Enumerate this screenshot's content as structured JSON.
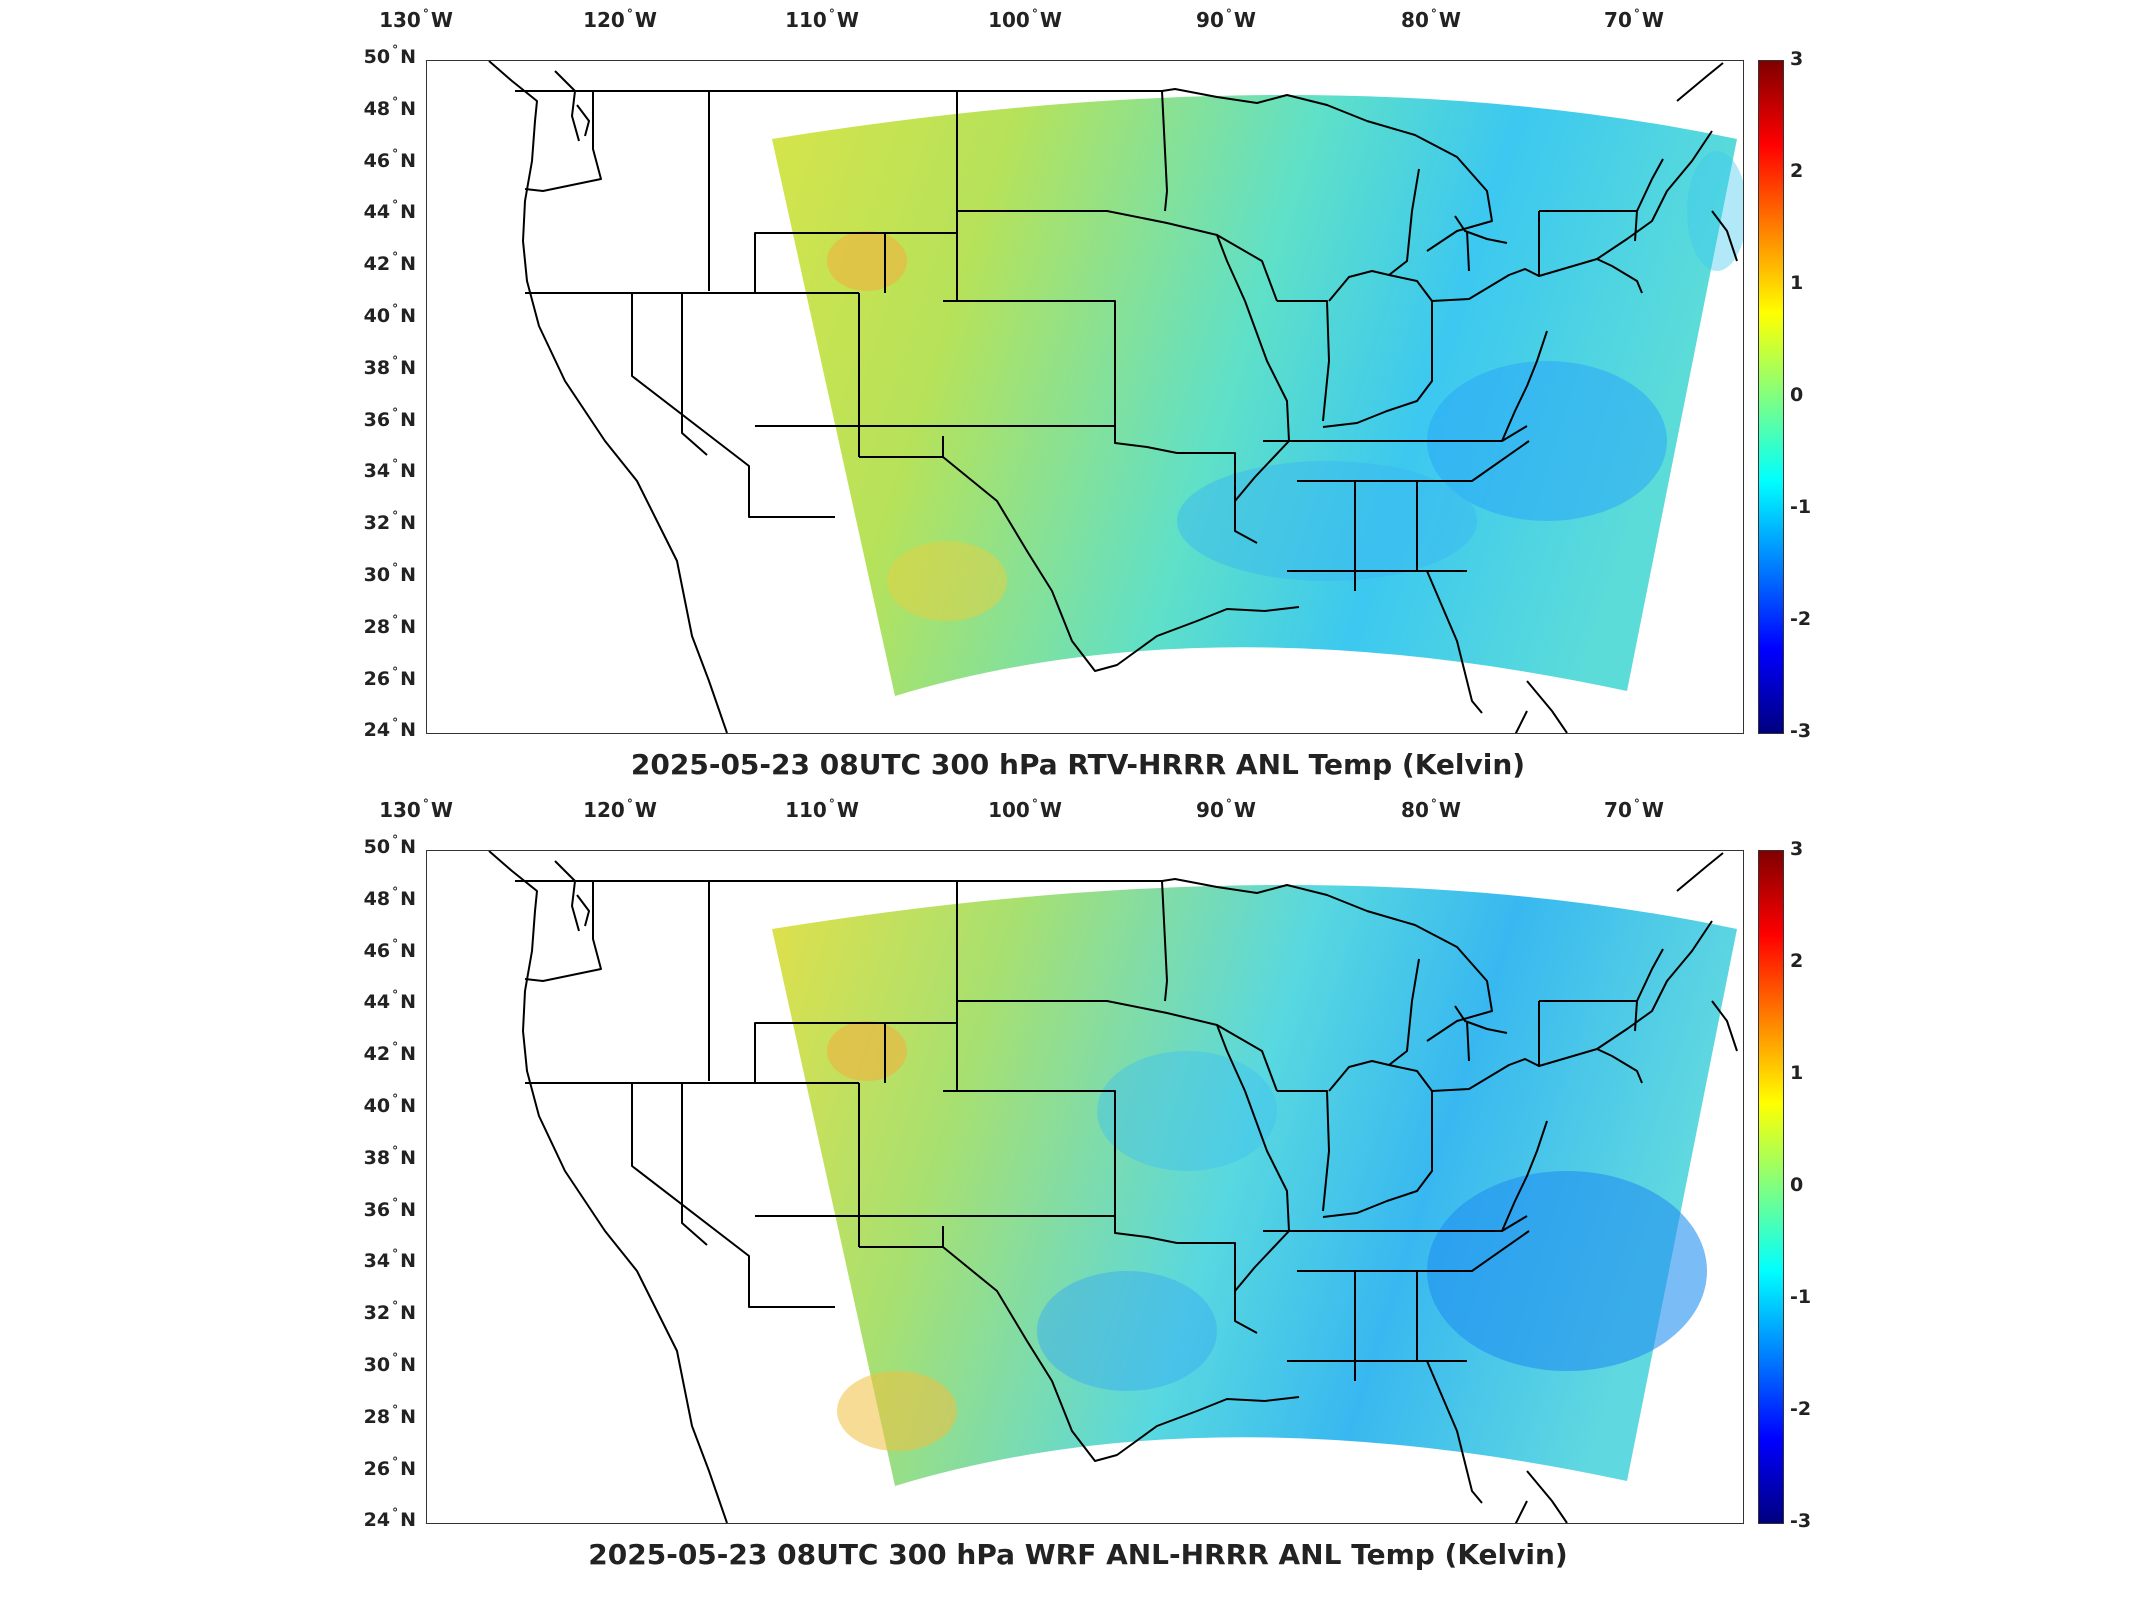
{
  "colorbar": {
    "ticks": [
      "3",
      "2",
      "1",
      "0",
      "-1",
      "-2",
      "-3"
    ],
    "colors": [
      "#800000",
      "#ff0000",
      "#ff8000",
      "#ffff00",
      "#80ff80",
      "#00ffff",
      "#0080ff",
      "#0000ff",
      "#000080"
    ]
  },
  "axes": {
    "lon_labels": [
      {
        "deg": "130",
        "hem": "W"
      },
      {
        "deg": "120",
        "hem": "W"
      },
      {
        "deg": "110",
        "hem": "W"
      },
      {
        "deg": "100",
        "hem": "W"
      },
      {
        "deg": "90",
        "hem": "W"
      },
      {
        "deg": "80",
        "hem": "W"
      },
      {
        "deg": "70",
        "hem": "W"
      }
    ],
    "lat_labels": [
      {
        "deg": "50",
        "hem": "N"
      },
      {
        "deg": "48",
        "hem": "N"
      },
      {
        "deg": "46",
        "hem": "N"
      },
      {
        "deg": "44",
        "hem": "N"
      },
      {
        "deg": "42",
        "hem": "N"
      },
      {
        "deg": "40",
        "hem": "N"
      },
      {
        "deg": "38",
        "hem": "N"
      },
      {
        "deg": "36",
        "hem": "N"
      },
      {
        "deg": "34",
        "hem": "N"
      },
      {
        "deg": "32",
        "hem": "N"
      },
      {
        "deg": "30",
        "hem": "N"
      },
      {
        "deg": "28",
        "hem": "N"
      },
      {
        "deg": "26",
        "hem": "N"
      },
      {
        "deg": "24",
        "hem": "N"
      }
    ]
  },
  "panels": [
    {
      "title": "2025-05-23 08UTC 300 hPa RTV-HRRR ANL Temp (Kelvin)"
    },
    {
      "title": "2025-05-23 08UTC 300 hPa WRF ANL-HRRR ANL Temp (Kelvin)"
    }
  ]
}
